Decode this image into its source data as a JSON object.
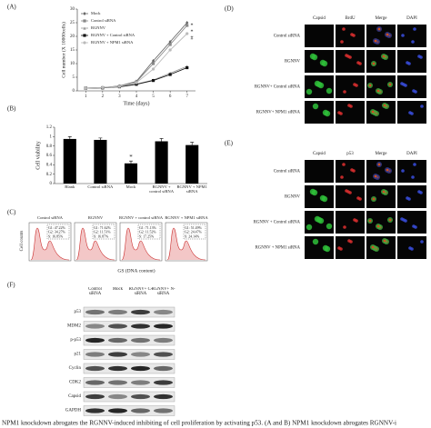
{
  "chart_data": [
    {
      "type": "line",
      "label": "(A)",
      "x_label": "Time (days)",
      "y_label": "Cell number (X 10000cells)",
      "x": [
        1,
        2,
        3,
        4,
        5,
        6,
        7
      ],
      "xlim": [
        0.5,
        7.5
      ],
      "xticks": [
        1,
        2,
        3,
        4,
        5,
        6,
        7
      ],
      "ylim": [
        0,
        30
      ],
      "yticks": [
        0,
        5,
        10,
        15,
        20,
        25,
        30
      ],
      "legend": "top-left",
      "annotations": [
        "*",
        "*",
        "#"
      ],
      "series": [
        {
          "name": "Mock",
          "color": "#666666",
          "marker": "diamond",
          "values": [
            1,
            1.2,
            1.8,
            3.5,
            11,
            18,
            25
          ]
        },
        {
          "name": "Control siRNA",
          "color": "#888888",
          "marker": "square",
          "values": [
            1,
            1.2,
            1.7,
            3.3,
            10,
            17,
            24
          ]
        },
        {
          "name": "RGNNV",
          "color": "#999999",
          "marker": "triangle",
          "values": [
            1,
            1.1,
            1.5,
            2.5,
            4,
            6.5,
            9
          ]
        },
        {
          "name": "RGNNV + Control siRNA",
          "color": "#111111",
          "marker": "square",
          "values": [
            1,
            1.1,
            1.5,
            2.4,
            3.8,
            6,
            8.5
          ]
        },
        {
          "name": "RGNNV + NPM1 siRNA",
          "color": "#bbbbbb",
          "marker": "circle",
          "values": [
            1,
            1.2,
            1.6,
            3,
            8,
            15,
            21
          ]
        }
      ]
    },
    {
      "type": "bar",
      "label": "(B)",
      "y_label": "Cell viability",
      "color": "#000000",
      "categories": [
        "Blank",
        "Control siRNA",
        "Mock",
        "RGNNV + control siRNA",
        "RGNNV + NPM1 siRNA"
      ],
      "values": [
        0.95,
        0.93,
        0.43,
        0.9,
        0.82
      ],
      "errors": [
        0.05,
        0.04,
        0.05,
        0.06,
        0.06
      ],
      "annotations": [
        "*"
      ],
      "ylim": [
        0,
        1.2
      ],
      "yticks": [
        0,
        0.2,
        0.4,
        0.6,
        0.8,
        1,
        1.2
      ]
    }
  ],
  "flow": {
    "label": "(C)",
    "y_label": "Cell counts",
    "x_label": "GS (DNA content)",
    "samples": [
      {
        "title": "Control siRNA",
        "stats": [
          "G1: 47.22%",
          "G2: 34.27%",
          "S: 16.85%"
        ]
      },
      {
        "title": "RGNNV",
        "stats": [
          "G1: 71.62%",
          "G2: 11.51%",
          "S: 16.87%"
        ]
      },
      {
        "title": "RGNNV + control siRNA",
        "stats": [
          "G1: 71.13%",
          "G2: 11.52%",
          "S: 17.25%"
        ]
      },
      {
        "title": "RGNNV + NPM1 siRNA",
        "stats": [
          "G1: 51.49%",
          "G2: 24.47%",
          "S: 24.14%"
        ]
      }
    ]
  },
  "panel_d": {
    "label": "(D)",
    "columns": [
      "Capsid",
      "BrdU",
      "Merge",
      "DAPI"
    ],
    "rows": [
      "Control siRNA",
      "RGNNV",
      "RGNNV+ Control siRNA",
      "RGNNV+ NPM1 siRNA"
    ]
  },
  "panel_e": {
    "label": "(E)",
    "columns": [
      "Capsid",
      "p53",
      "Merge",
      "DAPI"
    ],
    "rows": [
      "Control siRNA",
      "RGNNV",
      "RGNNV + Control siRNA",
      "RGNNV + NPM1 siRNA"
    ]
  },
  "blot": {
    "label": "(F)",
    "columns": [
      "Control siRNA",
      "Mock",
      "RGNNV+ C-siRNA",
      "RGNNV+ N-siRNA"
    ],
    "rows": [
      "p53",
      "MDM2",
      "p-p53",
      "p21",
      "Cyclin",
      "CDK2",
      "Capsid",
      "GAPDH"
    ]
  },
  "caption": "NPM1 knockdown abrogates the RGNNV-induced inhibiting of cell proliferation by activating p53. (A and B) NPM1 knockdown abrogates RGNNV-i"
}
